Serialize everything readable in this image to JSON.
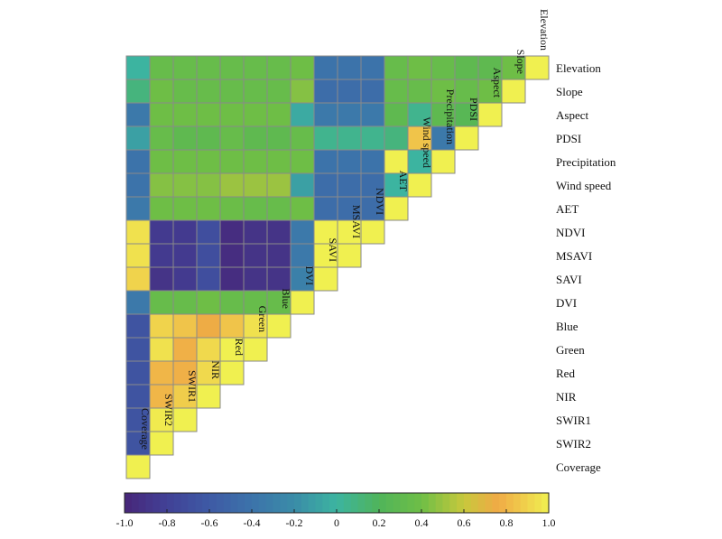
{
  "chart_data": {
    "type": "heatmap",
    "variables": [
      "Coverage",
      "SWIR2",
      "SWIR1",
      "NIR",
      "Red",
      "Green",
      "Blue",
      "DVI",
      "SAVI",
      "MSAVI",
      "NDVI",
      "AET",
      "Wind speed",
      "Precipitation",
      "PDSI",
      "Aspect",
      "Slope",
      "Elevation"
    ],
    "values": [
      [
        1.0
      ],
      [
        -0.65,
        1.0
      ],
      [
        -0.65,
        0.98,
        1.0
      ],
      [
        -0.65,
        0.8,
        0.88,
        1.0
      ],
      [
        -0.65,
        0.8,
        0.78,
        0.92,
        1.0
      ],
      [
        -0.65,
        0.95,
        0.78,
        0.92,
        1.0,
        1.0
      ],
      [
        -0.65,
        0.9,
        0.85,
        0.75,
        0.85,
        0.95,
        1.0
      ],
      [
        -0.35,
        0.35,
        0.35,
        0.4,
        0.35,
        0.35,
        0.35,
        1.0
      ],
      [
        0.9,
        -0.9,
        -0.85,
        -0.7,
        -0.95,
        -0.9,
        -0.9,
        -0.3,
        1.0
      ],
      [
        0.95,
        -0.85,
        -0.85,
        -0.7,
        -0.95,
        -0.9,
        -0.9,
        -0.35,
        1.0,
        1.0
      ],
      [
        0.95,
        -0.85,
        -0.85,
        -0.7,
        -0.95,
        -0.9,
        -0.9,
        -0.35,
        1.0,
        1.0,
        1.0
      ],
      [
        -0.35,
        0.4,
        0.4,
        0.4,
        0.38,
        0.35,
        0.35,
        0.4,
        -0.45,
        -0.45,
        -0.45,
        1.0
      ],
      [
        -0.4,
        0.45,
        0.45,
        0.45,
        0.5,
        0.5,
        0.5,
        -0.1,
        -0.45,
        -0.45,
        -0.45,
        0.0,
        1.0
      ],
      [
        -0.4,
        0.4,
        0.4,
        0.4,
        0.4,
        0.4,
        0.4,
        0.4,
        -0.4,
        -0.4,
        -0.4,
        1.0,
        0.0,
        1.0
      ],
      [
        -0.1,
        0.35,
        0.3,
        0.3,
        0.35,
        0.3,
        0.3,
        0.35,
        0.05,
        0.05,
        0.05,
        0.1,
        0.85,
        -0.35,
        1.0
      ],
      [
        -0.35,
        0.4,
        0.4,
        0.4,
        0.4,
        0.4,
        0.4,
        -0.05,
        -0.35,
        -0.35,
        -0.35,
        0.3,
        0.05,
        0.3,
        0.25,
        1.0
      ],
      [
        0.1,
        0.4,
        0.35,
        0.35,
        0.35,
        0.35,
        0.35,
        0.45,
        -0.45,
        -0.45,
        -0.45,
        0.35,
        0.35,
        0.4,
        0.35,
        0.4,
        1.0
      ],
      [
        0.0,
        0.35,
        0.35,
        0.35,
        0.35,
        0.35,
        0.35,
        0.4,
        -0.4,
        -0.4,
        -0.4,
        0.35,
        0.4,
        0.35,
        0.3,
        0.3,
        0.4,
        1.0
      ]
    ],
    "colorbar": {
      "min": -1.0,
      "max": 1.0,
      "ticks": [
        "-1.0",
        "-0.8",
        "-0.6",
        "-0.4",
        "-0.2",
        "0",
        "0.2",
        "0.4",
        "0.6",
        "0.8",
        "1.0"
      ]
    },
    "xlabel": "",
    "ylabel": "",
    "title": ""
  }
}
